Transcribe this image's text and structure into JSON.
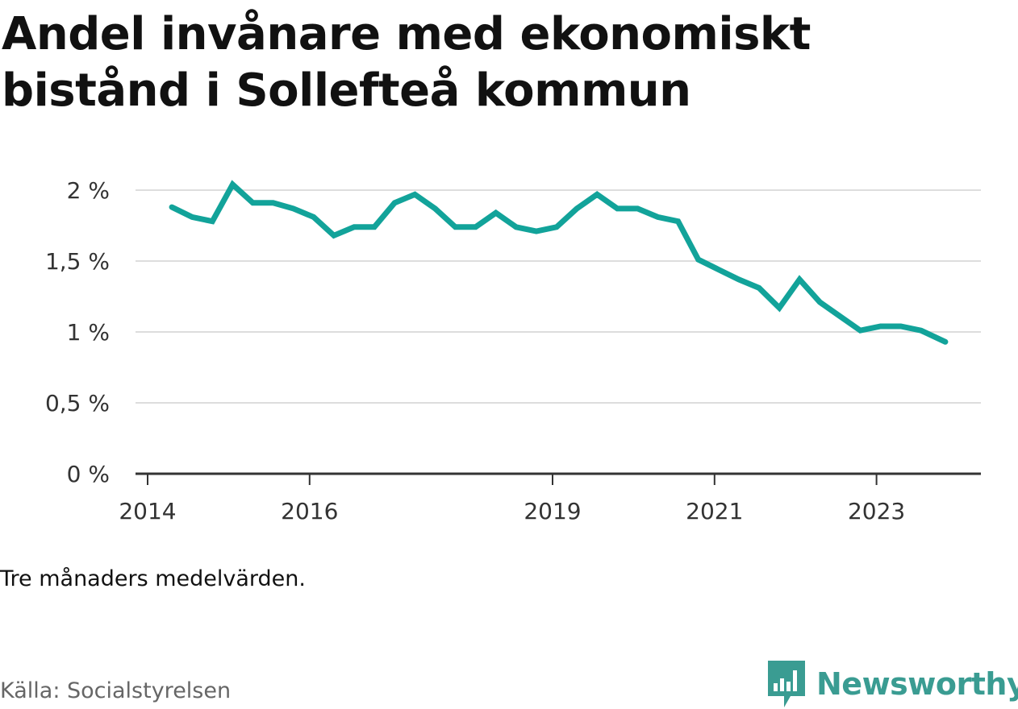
{
  "title": "Andel invånare med ekonomiskt bistånd i Sollefteå kommun",
  "note": "Tre månaders medelvärden.",
  "source": "Källa: Socialstyrelsen",
  "brand": {
    "name": "Newsworthy",
    "logo_icon": "newsworthy-chart-bubble-icon"
  },
  "colors": {
    "line": "#12a39a",
    "grid": "#dddddd",
    "axis": "#333333",
    "brand": "#3a9c92"
  },
  "chart_data": {
    "type": "line",
    "title": "Andel invånare med ekonomiskt bistånd i Sollefteå kommun",
    "xlabel": "",
    "ylabel": "",
    "x_unit": "year",
    "x_ticks": [
      2014,
      2016,
      2019,
      2021,
      2023
    ],
    "y_ticks": [
      0,
      0.5,
      1,
      1.5,
      2
    ],
    "y_tick_labels": [
      "0 %",
      "0,5 %",
      "1 %",
      "1,5 %",
      "2 %"
    ],
    "ylim": [
      0,
      2
    ],
    "grid": true,
    "legend": "none",
    "series": [
      {
        "x": [
          2014.3,
          2014.55,
          2014.8,
          2015.05,
          2015.3,
          2015.55,
          2015.8,
          2016.05,
          2016.3,
          2016.55,
          2016.8,
          2017.05,
          2017.3,
          2017.55,
          2017.8,
          2018.05,
          2018.3,
          2018.55,
          2018.8,
          2019.05,
          2019.3,
          2019.55,
          2019.8,
          2020.05,
          2020.3,
          2020.55,
          2020.8,
          2021.05,
          2021.3,
          2021.55,
          2021.8,
          2022.05,
          2022.3,
          2022.55,
          2022.8,
          2023.05,
          2023.3,
          2023.55,
          2023.85
        ],
        "values": [
          1.88,
          1.81,
          1.78,
          2.04,
          1.91,
          1.91,
          1.87,
          1.81,
          1.68,
          1.74,
          1.74,
          1.91,
          1.97,
          1.87,
          1.74,
          1.74,
          1.84,
          1.74,
          1.71,
          1.74,
          1.87,
          1.97,
          1.87,
          1.87,
          1.81,
          1.78,
          1.51,
          1.44,
          1.37,
          1.31,
          1.17,
          1.37,
          1.21,
          1.11,
          1.01,
          1.04,
          1.04,
          1.01,
          0.93
        ]
      }
    ]
  }
}
